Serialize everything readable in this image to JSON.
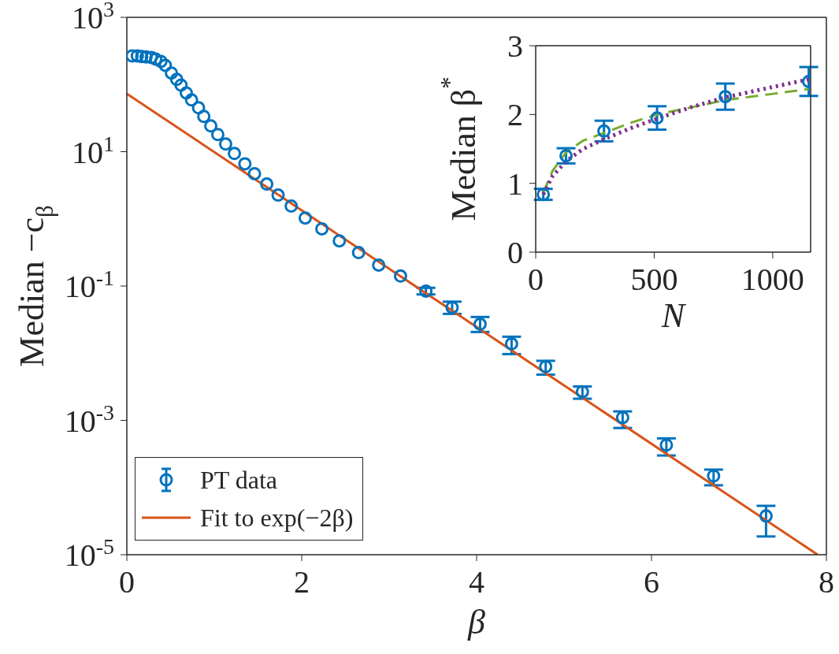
{
  "chart_data": [
    {
      "type": "scatter",
      "xlabel": "β",
      "ylabel": "Median −c$_{β}$",
      "log": "y",
      "xlim": [
        0,
        8
      ],
      "xticks": [
        0,
        2,
        4,
        6,
        8
      ],
      "ylim": [
        1e-05,
        1000
      ],
      "yticks": [
        {
          "value": 1e-05,
          "label": "10$^{-5}$"
        },
        {
          "value": 0.001,
          "label": "10$^{-3}$"
        },
        {
          "value": 0.1,
          "label": "10$^{-1}$"
        },
        {
          "value": 10,
          "label": "10$^{1}$"
        },
        {
          "value": 1000,
          "label": "10$^{3}$"
        }
      ],
      "legend": "bottom left",
      "series": [
        {
          "name": "PT data",
          "marker": "circle",
          "color": "#0072bd",
          "x": [
            0.06,
            0.12,
            0.17,
            0.22,
            0.28,
            0.33,
            0.39,
            0.44,
            0.51,
            0.57,
            0.62,
            0.68,
            0.74,
            0.82,
            0.88,
            0.96,
            1.04,
            1.13,
            1.23,
            1.35,
            1.46,
            1.6,
            1.73,
            1.88,
            2.04,
            2.23,
            2.43,
            2.65,
            2.88,
            3.13,
            3.42,
            3.72,
            4.04,
            4.4,
            4.79,
            5.21,
            5.67,
            6.17,
            6.71,
            7.31
          ],
          "values": [
            267,
            267,
            260,
            257,
            253,
            239,
            221,
            193,
            148,
            119,
            98,
            75,
            59,
            45,
            33.5,
            24.2,
            18,
            13,
            9.4,
            6.6,
            4.7,
            3.3,
            2.26,
            1.55,
            1.03,
            0.71,
            0.47,
            0.315,
            0.205,
            0.141,
            0.084,
            0.048,
            0.0271,
            0.0138,
            0.0063,
            0.00267,
            0.0011,
            0.00043,
            0.000149,
            3.77e-05
          ],
          "errors": [
            null,
            null,
            null,
            null,
            null,
            null,
            null,
            null,
            null,
            null,
            null,
            null,
            null,
            null,
            null,
            null,
            null,
            null,
            null,
            null,
            null,
            null,
            null,
            null,
            null,
            null,
            null,
            null,
            null,
            null,
            [
              0.075,
              0.094
            ],
            [
              0.0385,
              0.0585
            ],
            [
              0.0207,
              0.0346
            ],
            [
              0.0097,
              0.0176
            ],
            [
              0.0048,
              0.0077
            ],
            [
              0.0021,
              0.0032
            ],
            [
              0.00077,
              0.00136
            ],
            [
              0.0003,
              0.00054
            ],
            [
              0.000108,
              0.000185
            ],
            [
              1.87e-05,
              5.34e-05
            ]
          ]
        },
        {
          "name": "Fit to exp(−2β)",
          "type": "line",
          "marker": "none",
          "line_style": "solid",
          "color": "#d95319",
          "x": [
            0,
            4,
            7.9
          ],
          "values": [
            73,
            0.0245,
            1e-05
          ]
        }
      ]
    },
    {
      "type": "scatter",
      "xlabel": "N",
      "ylabel": "Median β$^{*}$",
      "xlim": [
        0,
        1160
      ],
      "xticks": [
        0,
        500,
        1000
      ],
      "ylim": [
        0,
        3
      ],
      "yticks": [
        0,
        1,
        2,
        3
      ],
      "legend": false,
      "series": [
        {
          "marker": "circle",
          "color": "#0072bd",
          "x": [
            32,
            128,
            288,
            512,
            800,
            1152
          ],
          "values": [
            0.84,
            1.4,
            1.76,
            1.95,
            2.26,
            2.48
          ],
          "errors": [
            0.08,
            0.11,
            0.15,
            0.17,
            0.19,
            0.21
          ]
        },
        {
          "type": "line",
          "marker": "none",
          "line_style": "dashed",
          "color": "#77ac30",
          "x": [
            32,
            71,
            128,
            200,
            287,
            400,
            512,
            650,
            800,
            1000,
            1152
          ],
          "values": [
            0.86,
            1.18,
            1.45,
            1.62,
            1.73,
            1.88,
            2.0,
            2.1,
            2.21,
            2.3,
            2.37
          ]
        },
        {
          "type": "line",
          "marker": "none",
          "line_style": "dotted",
          "color": "#7e2f8e",
          "x": [
            32,
            70,
            128,
            200,
            287,
            400,
            512,
            650,
            800,
            1000,
            1152
          ],
          "values": [
            0.84,
            1.1,
            1.32,
            1.5,
            1.64,
            1.8,
            1.94,
            2.1,
            2.25,
            2.4,
            2.51
          ]
        }
      ]
    }
  ]
}
